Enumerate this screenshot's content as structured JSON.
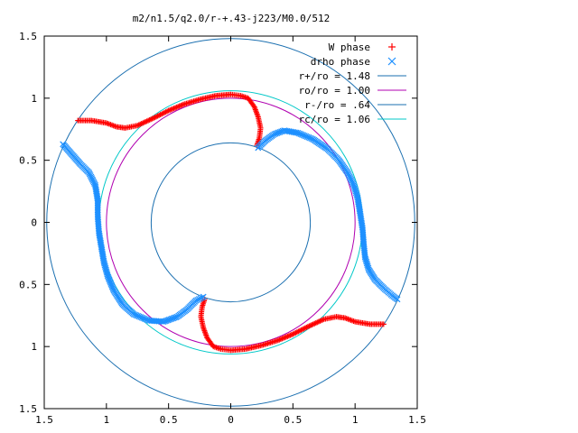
{
  "chart_data": {
    "type": "scatter",
    "title": "m2/n1.5/q2.0/r-+.43-j223/M0.0/512",
    "xlim": [
      -1.5,
      1.5
    ],
    "ylim": [
      -1.5,
      1.5
    ],
    "xticks": [
      -1.5,
      -1,
      -0.5,
      0,
      0.5,
      1,
      1.5
    ],
    "yticks": [
      -1.5,
      -1,
      -0.5,
      0,
      0.5,
      1,
      1.5
    ],
    "xtick_labels": [
      "1.5",
      "1",
      "0.5",
      "0",
      "0.5",
      "1",
      "1.5"
    ],
    "ytick_labels": [
      "1.5",
      "1",
      "0.5",
      "0",
      "0.5",
      "1",
      "1.5"
    ],
    "grid": false,
    "legend_position": "top-right",
    "series": [
      {
        "name": "W phase",
        "marker": "plus",
        "color": "#ff0000",
        "points": [
          [
            -1.23,
            0.82
          ],
          [
            -1.12,
            0.82
          ],
          [
            -1.0,
            0.8
          ],
          [
            -0.92,
            0.77
          ],
          [
            -0.85,
            0.76
          ],
          [
            -0.75,
            0.78
          ],
          [
            -0.62,
            0.84
          ],
          [
            -0.5,
            0.9
          ],
          [
            -0.38,
            0.95
          ],
          [
            -0.25,
            0.99
          ],
          [
            -0.12,
            1.02
          ],
          [
            0.0,
            1.03
          ],
          [
            0.08,
            1.02
          ],
          [
            0.14,
            1.0
          ],
          [
            0.19,
            0.93
          ],
          [
            0.22,
            0.85
          ],
          [
            0.24,
            0.76
          ],
          [
            0.23,
            0.68
          ],
          [
            0.21,
            0.62
          ],
          [
            -0.21,
            -0.62
          ],
          [
            -0.23,
            -0.68
          ],
          [
            -0.24,
            -0.76
          ],
          [
            -0.22,
            -0.85
          ],
          [
            -0.19,
            -0.93
          ],
          [
            -0.14,
            -1.0
          ],
          [
            -0.08,
            -1.02
          ],
          [
            0.0,
            -1.03
          ],
          [
            0.12,
            -1.02
          ],
          [
            0.25,
            -0.99
          ],
          [
            0.38,
            -0.95
          ],
          [
            0.5,
            -0.9
          ],
          [
            0.62,
            -0.84
          ],
          [
            0.75,
            -0.78
          ],
          [
            0.85,
            -0.76
          ],
          [
            0.92,
            -0.77
          ],
          [
            1.0,
            -0.8
          ],
          [
            1.12,
            -0.82
          ],
          [
            1.23,
            -0.82
          ]
        ]
      },
      {
        "name": "drho phase",
        "marker": "cross",
        "color": "#1e90ff",
        "points": [
          [
            -1.35,
            0.63
          ],
          [
            -1.28,
            0.55
          ],
          [
            -1.21,
            0.47
          ],
          [
            -1.14,
            0.4
          ],
          [
            -1.09,
            0.3
          ],
          [
            -1.07,
            0.18
          ],
          [
            -1.07,
            0.05
          ],
          [
            -1.06,
            -0.08
          ],
          [
            -1.04,
            -0.2
          ],
          [
            -1.02,
            -0.32
          ],
          [
            -0.99,
            -0.43
          ],
          [
            -0.94,
            -0.55
          ],
          [
            -0.87,
            -0.66
          ],
          [
            -0.78,
            -0.74
          ],
          [
            -0.66,
            -0.79
          ],
          [
            -0.54,
            -0.8
          ],
          [
            -0.43,
            -0.76
          ],
          [
            -0.35,
            -0.7
          ],
          [
            -0.28,
            -0.63
          ],
          [
            -0.22,
            -0.6
          ],
          [
            0.22,
            0.6
          ],
          [
            0.28,
            0.66
          ],
          [
            0.35,
            0.71
          ],
          [
            0.43,
            0.74
          ],
          [
            0.54,
            0.72
          ],
          [
            0.66,
            0.67
          ],
          [
            0.78,
            0.59
          ],
          [
            0.87,
            0.5
          ],
          [
            0.94,
            0.4
          ],
          [
            0.99,
            0.3
          ],
          [
            1.02,
            0.2
          ],
          [
            1.04,
            0.08
          ],
          [
            1.06,
            -0.05
          ],
          [
            1.07,
            -0.18
          ],
          [
            1.08,
            -0.28
          ],
          [
            1.11,
            -0.38
          ],
          [
            1.16,
            -0.46
          ],
          [
            1.23,
            -0.53
          ],
          [
            1.3,
            -0.59
          ],
          [
            1.34,
            -0.62
          ]
        ]
      }
    ],
    "circles": [
      {
        "name": "r+/ro = 1.48",
        "radius": 1.48,
        "color": "#1a6fb0"
      },
      {
        "name": "ro/ro = 1.00",
        "radius": 1.0,
        "color": "#b000b0"
      },
      {
        "name": "r-/ro = .64",
        "radius": 0.64,
        "color": "#1a6fb0"
      },
      {
        "name": "rc/ro = 1.06",
        "radius": 1.06,
        "color": "#00c8c8"
      }
    ]
  }
}
